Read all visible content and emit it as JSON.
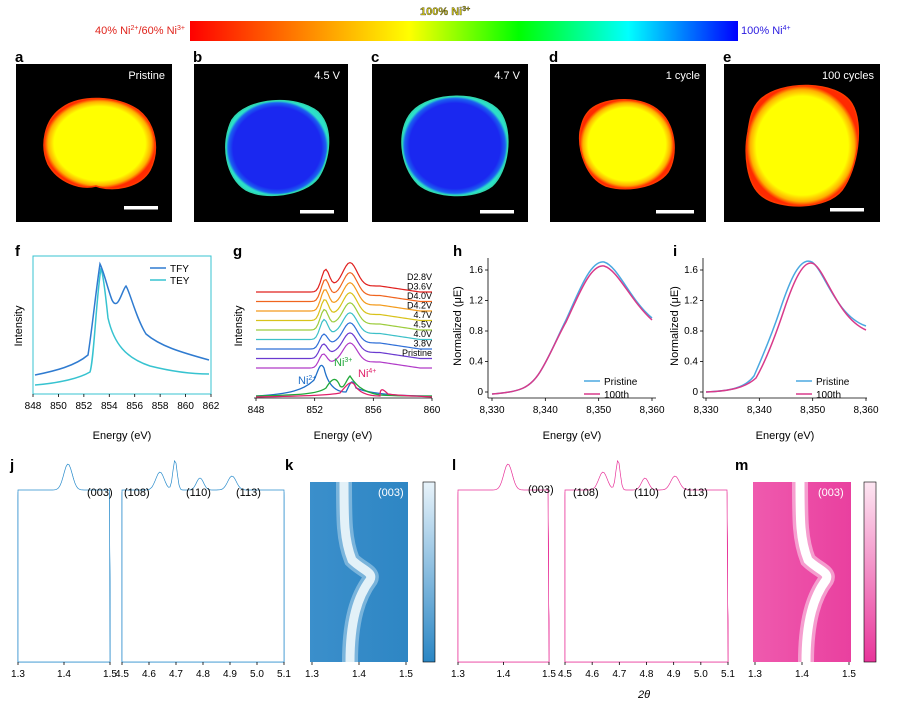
{
  "colorbar": {
    "left_label_parts": [
      "40% Ni",
      "2+",
      "/60% Ni",
      "3+"
    ],
    "center_label_parts": [
      "100% Ni",
      "3+"
    ],
    "right_label_parts": [
      "100% Ni",
      "4+"
    ],
    "gradient_colors": [
      "#ff0000",
      "#ff7f00",
      "#ffff00",
      "#00ff00",
      "#00ffff",
      "#0000ff"
    ]
  },
  "maps": [
    {
      "letter": "a",
      "label": "Pristine",
      "state": "Ni2+/Ni3+"
    },
    {
      "letter": "b",
      "label": "4.5 V",
      "state": "Ni4+"
    },
    {
      "letter": "c",
      "label": "4.7 V",
      "state": "Ni4+"
    },
    {
      "letter": "d",
      "label": "1 cycle",
      "state": "Ni2+/Ni3+"
    },
    {
      "letter": "e",
      "label": "100 cycles",
      "state": "Ni2+/Ni3+"
    }
  ],
  "panel_f": {
    "letter": "f",
    "xlabel": "Energy (eV)",
    "ylabel": "Intensity",
    "xticks": [
      "848",
      "850",
      "852",
      "854",
      "856",
      "858",
      "860",
      "862"
    ],
    "legend": [
      "TFY",
      "TEY"
    ],
    "colors": {
      "TFY": "#2f7bd0",
      "TEY": "#37c3d0"
    }
  },
  "panel_g": {
    "letter": "g",
    "xlabel": "Energy (eV)",
    "ylabel": "Intensity",
    "xticks": [
      "848",
      "852",
      "856",
      "860"
    ],
    "curves": [
      {
        "name": "D2.8V",
        "color": "#e0201e"
      },
      {
        "name": "D3.6V",
        "color": "#f0641e"
      },
      {
        "name": "D4.0V",
        "color": "#f39a1c"
      },
      {
        "name": "D4.2V",
        "color": "#d8c21a"
      },
      {
        "name": "4.7V",
        "color": "#9ccc3c"
      },
      {
        "name": "4.5V",
        "color": "#3cc0c8"
      },
      {
        "name": "4.0V",
        "color": "#2f6fd8"
      },
      {
        "name": "3.8V",
        "color": "#6a3ad0"
      },
      {
        "name": "Pristine",
        "color": "#b03ac8"
      }
    ],
    "references": [
      {
        "name": "Ni",
        "sup": "2+",
        "color": "#1f6fc8"
      },
      {
        "name": "Ni",
        "sup": "3+",
        "color": "#21a83a"
      },
      {
        "name": "Ni",
        "sup": "4+",
        "color": "#e0206a"
      }
    ]
  },
  "panel_h": {
    "letter": "h",
    "xlabel": "Energy (eV)",
    "ylabel": "Normalized (μE)",
    "xticks": [
      "8,330",
      "8,340",
      "8,350",
      "8,360"
    ],
    "yticks": [
      "0",
      "0.4",
      "0.8",
      "1.2",
      "1.6"
    ],
    "legend": [
      "Pristine",
      "100th"
    ],
    "colors": {
      "Pristine": "#4aa8e0",
      "100th": "#d83a8a"
    }
  },
  "panel_i": {
    "letter": "i",
    "xlabel": "Energy (eV)",
    "ylabel": "Normalized (μE)",
    "xticks": [
      "8,330",
      "8,340",
      "8,350",
      "8,360"
    ],
    "yticks": [
      "0",
      "0.4",
      "0.8",
      "1.2",
      "1.6"
    ],
    "legend": [
      "Pristine",
      "100th"
    ],
    "colors": {
      "Pristine": "#4aa8e0",
      "100th": "#d83a8a"
    }
  },
  "panel_j": {
    "letter": "j",
    "peaks": [
      "(003)",
      "(108)",
      "(110)",
      "(113)"
    ],
    "xticks_left": [
      "1.3",
      "1.4",
      "1.5"
    ],
    "xticks_right": [
      "4.5",
      "4.6",
      "4.7",
      "4.8",
      "4.9",
      "5.0",
      "5.1"
    ],
    "color": "#2a8ccc"
  },
  "panel_k": {
    "letter": "k",
    "peak": "(003)",
    "xticks": [
      "1.3",
      "1.4",
      "1.5"
    ],
    "color": "#3a8fc8"
  },
  "panel_l": {
    "letter": "l",
    "peaks": [
      "(003)",
      "(108)",
      "(110)",
      "(113)"
    ],
    "xticks_left": [
      "1.3",
      "1.4",
      "1.5"
    ],
    "xticks_right": [
      "4.5",
      "4.6",
      "4.7",
      "4.8",
      "4.9",
      "5.0",
      "5.1"
    ],
    "color": "#e8359a",
    "xlabel": "2θ"
  },
  "panel_m": {
    "letter": "m",
    "peak": "(003)",
    "xticks": [
      "1.3",
      "1.4",
      "1.5"
    ],
    "color": "#ee4fa8"
  }
}
